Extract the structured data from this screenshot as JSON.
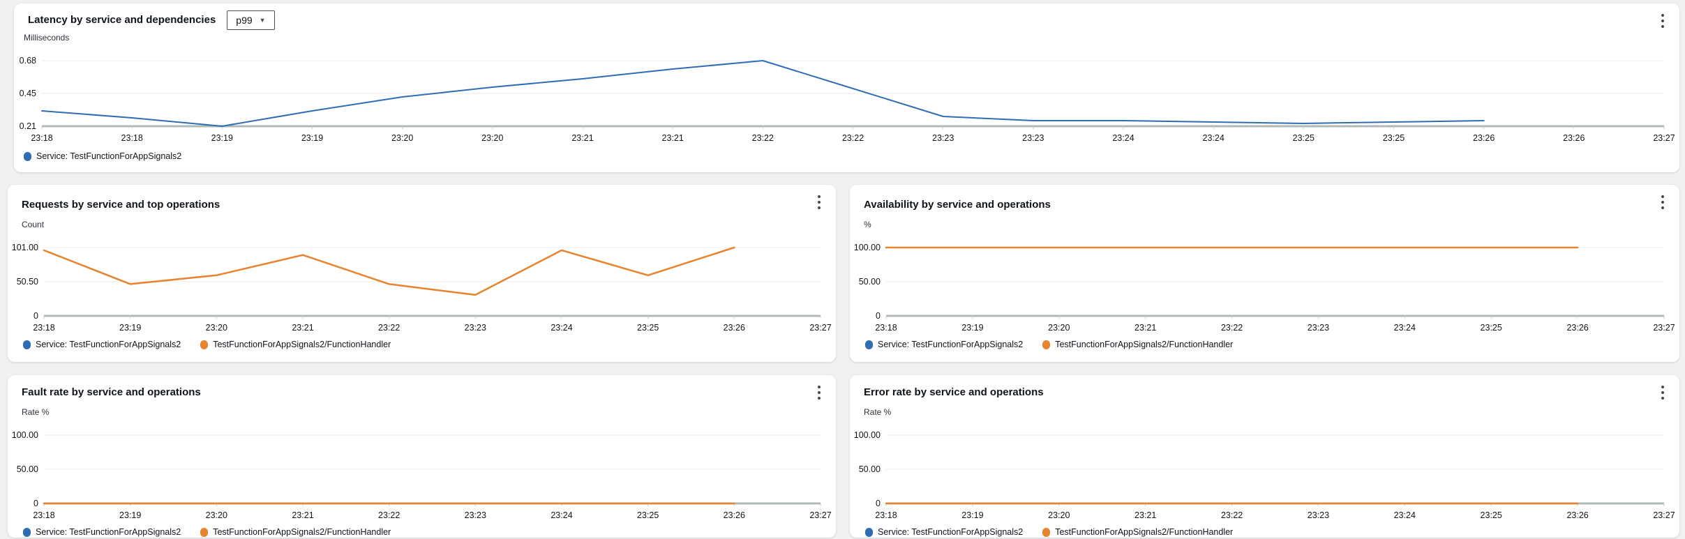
{
  "colors": {
    "blue": "#2e6db4",
    "orange": "#e8842d",
    "axis": "#b0b8b8",
    "grid": "#e9ebeb",
    "tick_text": "#0f141a",
    "background": "#f0f1f1",
    "panel_background": "#ffffff"
  },
  "panels": [
    {
      "title": "Latency by service and dependencies",
      "dropdown_label": "p99",
      "unit": "Milliseconds",
      "menu_icon": "kebab-vertical-dots",
      "legend": [
        {
          "color": "blue",
          "label": "Service: TestFunctionForAppSignals2"
        }
      ]
    },
    {
      "title": "Requests by service and top operations",
      "unit": "Count",
      "menu_icon": "kebab-vertical-dots",
      "legend": [
        {
          "color": "blue",
          "label": "Service: TestFunctionForAppSignals2"
        },
        {
          "color": "orange",
          "label": "TestFunctionForAppSignals2/FunctionHandler"
        }
      ]
    },
    {
      "title": "Availability by service and operations",
      "unit": "%",
      "menu_icon": "kebab-vertical-dots",
      "legend": [
        {
          "color": "blue",
          "label": "Service: TestFunctionForAppSignals2"
        },
        {
          "color": "orange",
          "label": "TestFunctionForAppSignals2/FunctionHandler"
        }
      ]
    },
    {
      "title": "Fault rate by service and operations",
      "unit": "Rate %",
      "menu_icon": "kebab-vertical-dots",
      "legend": [
        {
          "color": "blue",
          "label": "Service: TestFunctionForAppSignals2"
        },
        {
          "color": "orange",
          "label": "TestFunctionForAppSignals2/FunctionHandler"
        }
      ]
    },
    {
      "title": "Error rate by service and operations",
      "unit": "Rate %",
      "menu_icon": "kebab-vertical-dots",
      "legend": [
        {
          "color": "blue",
          "label": "Service: TestFunctionForAppSignals2"
        },
        {
          "color": "orange",
          "label": "TestFunctionForAppSignals2/FunctionHandler"
        }
      ]
    }
  ],
  "chart_data": [
    {
      "type": "line",
      "title": "Latency by service and dependencies",
      "ylabel": "Milliseconds",
      "y_ticks": [
        {
          "label": "0.68",
          "value": 0.68
        },
        {
          "label": "0.45",
          "value": 0.45
        },
        {
          "label": "0.21",
          "value": 0.21
        }
      ],
      "ylim": [
        0.21,
        0.68
      ],
      "x_labels": [
        "23:18",
        "23:18",
        "23:19",
        "23:19",
        "23:20",
        "23:20",
        "23:21",
        "23:21",
        "23:22",
        "23:22",
        "23:23",
        "23:23",
        "23:24",
        "23:24",
        "23:25",
        "23:25",
        "23:26",
        "23:26",
        "23:27"
      ],
      "x_interval": "30s",
      "grid": true,
      "legend_position": "bottom",
      "series": [
        {
          "name": "Service: TestFunctionForAppSignals2",
          "color": "blue",
          "values": [
            0.32,
            0.27,
            0.21,
            0.32,
            0.42,
            0.49,
            0.55,
            0.62,
            0.68,
            0.48,
            0.28,
            0.25,
            0.25,
            0.24,
            0.23,
            0.24,
            0.25
          ]
        }
      ]
    },
    {
      "type": "line",
      "title": "Requests by service and top operations",
      "ylabel": "Count",
      "y_ticks": [
        {
          "label": "101.00",
          "value": 101
        },
        {
          "label": "50.50",
          "value": 50.5
        },
        {
          "label": "0",
          "value": 0
        }
      ],
      "ylim": [
        0,
        101
      ],
      "x_labels": [
        "23:18",
        "23:19",
        "23:20",
        "23:21",
        "23:22",
        "23:23",
        "23:24",
        "23:25",
        "23:26",
        "23:27"
      ],
      "x_interval": "1m",
      "grid": true,
      "legend_position": "bottom",
      "series": [
        {
          "name": "Service: TestFunctionForAppSignals2",
          "color": "blue",
          "values": [
            97,
            47,
            60,
            90,
            47,
            31,
            97,
            60,
            101
          ]
        },
        {
          "name": "TestFunctionForAppSignals2/FunctionHandler",
          "color": "orange",
          "values": [
            97,
            47,
            60,
            90,
            47,
            31,
            97,
            60,
            101
          ]
        }
      ]
    },
    {
      "type": "line",
      "title": "Availability by service and operations",
      "ylabel": "%",
      "y_ticks": [
        {
          "label": "100.00",
          "value": 100
        },
        {
          "label": "50.00",
          "value": 50
        },
        {
          "label": "0",
          "value": 0
        }
      ],
      "ylim": [
        0,
        100
      ],
      "x_labels": [
        "23:18",
        "23:19",
        "23:20",
        "23:21",
        "23:22",
        "23:23",
        "23:24",
        "23:25",
        "23:26",
        "23:27"
      ],
      "x_interval": "1m",
      "grid": true,
      "legend_position": "bottom",
      "series": [
        {
          "name": "Service: TestFunctionForAppSignals2",
          "color": "blue",
          "values": [
            100,
            100,
            100,
            100,
            100,
            100,
            100,
            100,
            100
          ]
        },
        {
          "name": "TestFunctionForAppSignals2/FunctionHandler",
          "color": "orange",
          "values": [
            100,
            100,
            100,
            100,
            100,
            100,
            100,
            100,
            100
          ]
        }
      ]
    },
    {
      "type": "line",
      "title": "Fault rate by service and operations",
      "ylabel": "Rate %",
      "y_ticks": [
        {
          "label": "100.00",
          "value": 100
        },
        {
          "label": "50.00",
          "value": 50
        },
        {
          "label": "0",
          "value": 0
        }
      ],
      "ylim": [
        0,
        100
      ],
      "x_labels": [
        "23:18",
        "23:19",
        "23:20",
        "23:21",
        "23:22",
        "23:23",
        "23:24",
        "23:25",
        "23:26",
        "23:27"
      ],
      "x_interval": "1m",
      "grid": true,
      "legend_position": "bottom",
      "series": [
        {
          "name": "Service: TestFunctionForAppSignals2",
          "color": "blue",
          "values": [
            0,
            0,
            0,
            0,
            0,
            0,
            0,
            0,
            0
          ]
        },
        {
          "name": "TestFunctionForAppSignals2/FunctionHandler",
          "color": "orange",
          "values": [
            0,
            0,
            0,
            0,
            0,
            0,
            0,
            0,
            0
          ]
        }
      ]
    },
    {
      "type": "line",
      "title": "Error rate by service and operations",
      "ylabel": "Rate %",
      "y_ticks": [
        {
          "label": "100.00",
          "value": 100
        },
        {
          "label": "50.00",
          "value": 50
        },
        {
          "label": "0",
          "value": 0
        }
      ],
      "ylim": [
        0,
        100
      ],
      "x_labels": [
        "23:18",
        "23:19",
        "23:20",
        "23:21",
        "23:22",
        "23:23",
        "23:24",
        "23:25",
        "23:26",
        "23:27"
      ],
      "x_interval": "1m",
      "grid": true,
      "legend_position": "bottom",
      "series": [
        {
          "name": "Service: TestFunctionForAppSignals2",
          "color": "blue",
          "values": [
            0,
            0,
            0,
            0,
            0,
            0,
            0,
            0,
            0
          ]
        },
        {
          "name": "TestFunctionForAppSignals2/FunctionHandler",
          "color": "orange",
          "values": [
            0,
            0,
            0,
            0,
            0,
            0,
            0,
            0,
            0
          ]
        }
      ]
    }
  ]
}
